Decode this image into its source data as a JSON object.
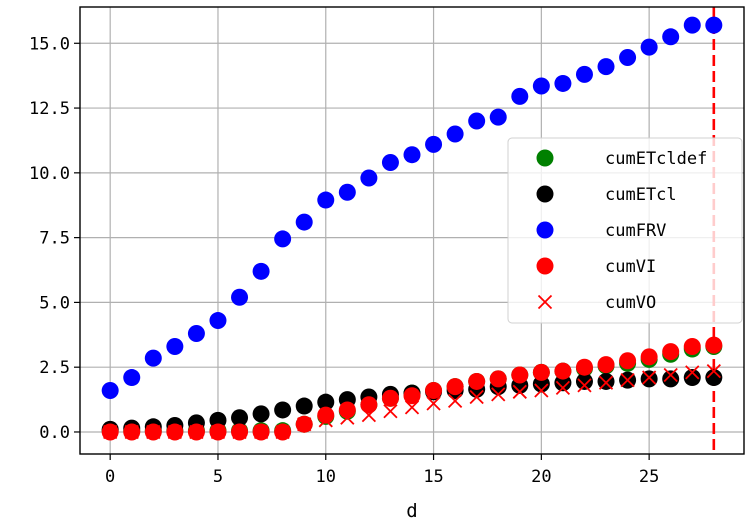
{
  "chart_data": {
    "type": "scatter",
    "title": "",
    "xlabel": "d",
    "ylabel": "",
    "xlim": [
      -1.4,
      29.4
    ],
    "ylim": [
      -0.85,
      16.4
    ],
    "xticks": [
      0,
      5,
      10,
      15,
      20,
      25
    ],
    "xtick_labels": [
      "0",
      "5",
      "10",
      "15",
      "20",
      "25"
    ],
    "yticks": [
      0,
      2.5,
      5,
      7.5,
      10,
      12.5,
      15
    ],
    "ytick_labels": [
      "0.0",
      "2.5",
      "5.0",
      "7.5",
      "10.0",
      "12.5",
      "15.0"
    ],
    "grid": true,
    "legend_position": "center-right",
    "vline": {
      "x": 28,
      "color": "#ff0000",
      "style": "dashed"
    },
    "x": [
      0,
      1,
      2,
      3,
      4,
      5,
      6,
      7,
      8,
      9,
      10,
      11,
      12,
      13,
      14,
      15,
      16,
      17,
      18,
      19,
      20,
      21,
      22,
      23,
      24,
      25,
      26,
      27,
      28
    ],
    "series": [
      {
        "name": "cumETcldef",
        "marker": "circle",
        "color": "#008000",
        "values": [
          0.05,
          0.05,
          0.05,
          0.05,
          0.05,
          0.05,
          0.05,
          0.05,
          0.05,
          0.3,
          0.6,
          0.8,
          1.05,
          1.3,
          1.5,
          1.6,
          1.75,
          1.95,
          2.05,
          2.2,
          2.3,
          2.35,
          2.45,
          2.55,
          2.65,
          2.8,
          3.0,
          3.2,
          3.3
        ]
      },
      {
        "name": "cumETcl",
        "marker": "circle",
        "color": "#000000",
        "values": [
          0.1,
          0.15,
          0.2,
          0.25,
          0.35,
          0.45,
          0.55,
          0.7,
          0.85,
          1.0,
          1.15,
          1.25,
          1.35,
          1.45,
          1.5,
          1.55,
          1.6,
          1.65,
          1.75,
          1.8,
          1.85,
          1.9,
          1.95,
          1.95,
          2.0,
          2.05,
          2.05,
          2.1,
          2.1
        ]
      },
      {
        "name": "cumFRV",
        "marker": "circle",
        "color": "#0000ff",
        "values": [
          1.6,
          2.1,
          2.85,
          3.3,
          3.8,
          4.3,
          5.2,
          6.2,
          7.45,
          8.1,
          8.95,
          9.25,
          9.8,
          10.4,
          10.7,
          11.1,
          11.5,
          12.0,
          12.15,
          12.95,
          13.35,
          13.45,
          13.8,
          14.1,
          14.45,
          14.85,
          15.25,
          15.7,
          15.7
        ]
      },
      {
        "name": "cumVI",
        "marker": "circle",
        "color": "#ff0000",
        "values": [
          0.0,
          0.0,
          0.0,
          0.0,
          0.0,
          0.0,
          0.0,
          0.0,
          0.0,
          0.3,
          0.65,
          0.85,
          1.05,
          1.3,
          1.4,
          1.6,
          1.75,
          1.95,
          2.05,
          2.2,
          2.3,
          2.35,
          2.5,
          2.6,
          2.75,
          2.9,
          3.1,
          3.3,
          3.35
        ]
      },
      {
        "name": "cumVO",
        "marker": "x",
        "color": "#ff0000",
        "values": [
          0.0,
          0.0,
          0.0,
          0.0,
          0.0,
          0.0,
          0.0,
          0.0,
          0.0,
          0.3,
          0.45,
          0.55,
          0.65,
          0.8,
          0.95,
          1.1,
          1.2,
          1.35,
          1.45,
          1.55,
          1.6,
          1.7,
          1.8,
          1.9,
          2.0,
          2.1,
          2.2,
          2.3,
          2.35
        ]
      }
    ]
  }
}
